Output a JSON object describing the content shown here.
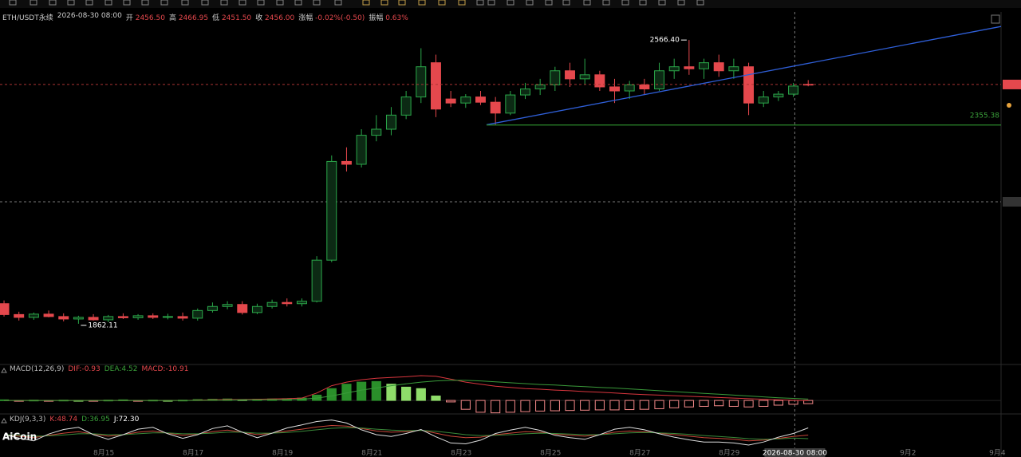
{
  "header": {
    "symbol": "ETH/USDT永续",
    "time": "2026-08-30 08:00",
    "fields": [
      {
        "label": "开",
        "value": "2456.50"
      },
      {
        "label": "高",
        "value": "2466.95"
      },
      {
        "label": "低",
        "value": "2451.50"
      },
      {
        "label": "收",
        "value": "2456.00"
      },
      {
        "label": "涨幅",
        "value": "-0.02%(-0.50)"
      },
      {
        "label": "振幅",
        "value": "0.63%"
      }
    ]
  },
  "watermark": "AiCoin",
  "chart_data": [
    {
      "type": "candlestick",
      "up_color": "#2ba84a",
      "down_color": "#e5484d",
      "xlim": [
        -0.27,
        66.95
      ],
      "ylim": [
        1765,
        2636
      ],
      "xticks": [
        {
          "value": 6.7,
          "label": "8月15"
        },
        {
          "value": 12.7,
          "label": "8月17"
        },
        {
          "value": 18.7,
          "label": "8月19"
        },
        {
          "value": 24.7,
          "label": "8月21"
        },
        {
          "value": 30.7,
          "label": "8月23"
        },
        {
          "value": 36.7,
          "label": "8月25"
        },
        {
          "value": 42.7,
          "label": "8月27"
        },
        {
          "value": 48.7,
          "label": "8月29"
        },
        {
          "value": 54.7,
          "label": "31"
        },
        {
          "value": 60.7,
          "label": "9月2"
        },
        {
          "value": 66.7,
          "label": "9月4"
        }
      ],
      "crosshair": {
        "value": 53.1,
        "label": "2026-08-30 08:00"
      },
      "open": [
        1912,
        1885,
        1878,
        1886,
        1880,
        1874,
        1878,
        1872,
        1880,
        1877,
        1882,
        1878,
        1880,
        1876,
        1895,
        1905,
        1910,
        1890,
        1905,
        1915,
        1912,
        1918,
        2020,
        2265,
        2258,
        2330,
        2345,
        2380,
        2425,
        2510,
        2420,
        2410,
        2425,
        2412,
        2385,
        2430,
        2445,
        2455,
        2490,
        2470,
        2480,
        2450,
        2440,
        2455,
        2445,
        2490,
        2500,
        2495,
        2510,
        2490,
        2500,
        2410,
        2425,
        2432,
        2456.5
      ],
      "high": [
        1920,
        1892,
        1890,
        1895,
        1888,
        1882,
        1886,
        1884,
        1888,
        1886,
        1888,
        1887,
        1890,
        1900,
        1915,
        1918,
        1918,
        1912,
        1922,
        1925,
        1925,
        2030,
        2280,
        2300,
        2345,
        2380,
        2400,
        2440,
        2546,
        2530,
        2440,
        2432,
        2440,
        2425,
        2440,
        2460,
        2470,
        2500,
        2510,
        2520,
        2490,
        2470,
        2465,
        2470,
        2510,
        2520,
        2566.4,
        2520,
        2530,
        2520,
        2510,
        2440,
        2440,
        2460,
        2466.95
      ],
      "low": [
        1880,
        1870,
        1872,
        1878,
        1868,
        1862.11,
        1870,
        1866,
        1874,
        1872,
        1874,
        1873,
        1870,
        1870,
        1890,
        1898,
        1885,
        1886,
        1900,
        1905,
        1905,
        1915,
        2015,
        2240,
        2250,
        2315,
        2330,
        2370,
        2410,
        2375,
        2400,
        2398,
        2405,
        2356,
        2380,
        2420,
        2430,
        2440,
        2450,
        2455,
        2440,
        2410,
        2420,
        2430,
        2440,
        2470,
        2480,
        2470,
        2475,
        2470,
        2380,
        2400,
        2415,
        2425,
        2451.5
      ],
      "close": [
        1885,
        1878,
        1886,
        1880,
        1874,
        1878,
        1872,
        1880,
        1877,
        1882,
        1878,
        1880,
        1876,
        1895,
        1905,
        1910,
        1890,
        1905,
        1915,
        1912,
        1918,
        2020,
        2265,
        2258,
        2330,
        2345,
        2380,
        2425,
        2500,
        2395,
        2410,
        2425,
        2412,
        2385,
        2430,
        2445,
        2455,
        2490,
        2470,
        2480,
        2450,
        2440,
        2455,
        2445,
        2490,
        2500,
        2495,
        2510,
        2490,
        2500,
        2410,
        2425,
        2432,
        2452,
        2456
      ],
      "markers": [
        {
          "label": "2566.40",
          "index": 46,
          "field": "high"
        },
        {
          "label": "1862.11",
          "index": 5,
          "field": "low"
        }
      ],
      "trendline": {
        "color": "#2f5fd8",
        "x": [
          32.4,
          66.95
        ],
        "y": [
          2356,
          2600
        ]
      },
      "hline": {
        "color": "#2d8a2d",
        "from": 32.4,
        "value": 2355.38
      }
    },
    {
      "type": "macd",
      "title": "MACD(12,26,9)",
      "ylim": [
        -43,
        119
      ],
      "legend": [
        {
          "label": "DIF:-0.93",
          "color": "#e5484d"
        },
        {
          "label": "DEA:4.52",
          "color": "#3aa03a"
        },
        {
          "label": "MACD:-10.91",
          "color": "#e5484d"
        }
      ],
      "colors": {
        "rise": "#2a8f2a",
        "fall": "#8fdc6a",
        "negative": "#f58a8a"
      },
      "histogram": [
        2,
        -1,
        1,
        -2,
        1,
        0,
        -1,
        1,
        2,
        -1,
        1,
        0,
        1,
        3,
        4,
        5,
        3,
        4,
        5,
        6,
        8,
        18,
        40,
        55,
        62,
        64,
        55,
        45,
        40,
        15,
        -5,
        -30,
        -40,
        -42,
        -40,
        -38,
        -36,
        -35,
        -34,
        -33,
        -32,
        -32,
        -31,
        -30,
        -28,
        -25,
        -22,
        -20,
        -18,
        -20,
        -22,
        -20,
        -16,
        -13,
        -10.91
      ],
      "series": [
        {
          "name": "DIF",
          "color": "#d9363e",
          "values": [
            0,
            0,
            0,
            0,
            0,
            0,
            0,
            0,
            0,
            0,
            0,
            0,
            0,
            1,
            2,
            3,
            3,
            4,
            5,
            6,
            8,
            25,
            50,
            62,
            70,
            75,
            78,
            80,
            84,
            82,
            72,
            62,
            55,
            48,
            44,
            40,
            38,
            35,
            33,
            30,
            28,
            25,
            22,
            20,
            18,
            16,
            14,
            12,
            10,
            8,
            6,
            4,
            2,
            0.5,
            -0.93
          ]
        },
        {
          "name": "DEA",
          "color": "#3a9a3a",
          "values": [
            0,
            0,
            0,
            0,
            0,
            0,
            0,
            0,
            0,
            0,
            0,
            0,
            0,
            0,
            1,
            1,
            2,
            2,
            3,
            3,
            4,
            8,
            15,
            25,
            35,
            42,
            50,
            56,
            62,
            66,
            68,
            68,
            66,
            63,
            60,
            57,
            54,
            52,
            49,
            47,
            44,
            42,
            39,
            36,
            33,
            30,
            27,
            24,
            21,
            18,
            15,
            12,
            9,
            7,
            4.52
          ]
        }
      ]
    },
    {
      "type": "kdj",
      "title": "KDJ(9,3,3)",
      "ylim": [
        -10,
        110
      ],
      "legend": [
        {
          "label": "K:48.74",
          "color": "#e5484d"
        },
        {
          "label": "D:36.95",
          "color": "#3aa03a"
        },
        {
          "label": "J:72.30",
          "color": "#ffffff"
        }
      ],
      "series": [
        {
          "name": "K",
          "color": "#c9473a",
          "values": [
            50,
            45,
            40,
            48,
            55,
            60,
            52,
            45,
            50,
            58,
            62,
            55,
            48,
            52,
            60,
            65,
            58,
            50,
            55,
            62,
            68,
            75,
            80,
            78,
            70,
            62,
            58,
            60,
            65,
            55,
            45,
            40,
            42,
            50,
            55,
            60,
            58,
            52,
            48,
            45,
            50,
            58,
            62,
            60,
            55,
            50,
            45,
            40,
            38,
            35,
            30,
            32,
            38,
            44,
            48.74
          ]
        },
        {
          "name": "D",
          "color": "#3a8a3a",
          "values": [
            50,
            48,
            45,
            46,
            49,
            53,
            53,
            50,
            50,
            53,
            56,
            56,
            53,
            53,
            55,
            58,
            58,
            55,
            55,
            57,
            61,
            66,
            71,
            73,
            72,
            68,
            65,
            63,
            64,
            61,
            56,
            50,
            47,
            48,
            50,
            53,
            55,
            54,
            52,
            50,
            50,
            53,
            56,
            57,
            56,
            54,
            51,
            47,
            44,
            41,
            37,
            35,
            36,
            39,
            36.95
          ]
        },
        {
          "name": "J",
          "color": "#dddddd",
          "values": [
            50,
            39,
            30,
            52,
            67,
            74,
            50,
            35,
            50,
            68,
            74,
            53,
            38,
            50,
            70,
            79,
            58,
            40,
            55,
            72,
            82,
            93,
            98,
            88,
            66,
            50,
            44,
            54,
            67,
            43,
            23,
            20,
            32,
            54,
            65,
            74,
            64,
            48,
            40,
            35,
            50,
            68,
            74,
            66,
            53,
            42,
            33,
            26,
            26,
            23,
            16,
            26,
            42,
            54,
            72.3
          ]
        }
      ]
    }
  ]
}
